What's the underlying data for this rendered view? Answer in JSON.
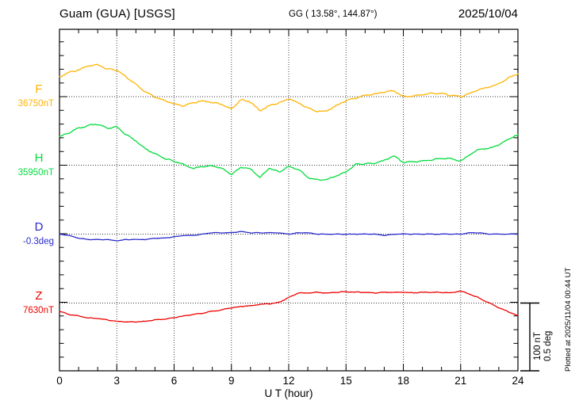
{
  "header": {
    "station": "Guam (GUA)  [USGS]",
    "coords": "GG ( 13.58°, 144.87°)",
    "date": "2025/10/04"
  },
  "plotted_at": "Plotted at 2025/11/04 00:44 UT",
  "scale_bar": {
    "labels": [
      "100 nT",
      "0.5 deg"
    ],
    "nT": 100,
    "deg": 0.5
  },
  "colors": {
    "F": "#FFB300",
    "H": "#00DC3C",
    "D": "#2929CC",
    "Z": "#EE0000",
    "axis": "#000000",
    "grid": "#444444"
  },
  "chart_data": {
    "type": "line",
    "title": "Guam (GUA) [USGS] magnetogram 2025/10/04",
    "xlabel": "U T (hour)",
    "xlim": [
      0,
      24
    ],
    "x_ticks": [
      0,
      3,
      6,
      9,
      12,
      15,
      18,
      21,
      24
    ],
    "x_start": 0,
    "x_step": 0.5,
    "grid": "dotted vertical every 3h, dotted horizontal at each component baseline",
    "y_minor_tick_nT": 20,
    "series": [
      {
        "name": "F",
        "unit": "nT",
        "baseline": 36750,
        "baseline_label": "36750nT",
        "values": [
          36779,
          36786,
          36790,
          36796,
          36797,
          36791,
          36790,
          36779,
          36768,
          36757,
          36749,
          36744,
          36739,
          36736,
          36741,
          36744,
          36741,
          36739,
          36731,
          36746,
          36742,
          36729,
          36737,
          36741,
          36747,
          36741,
          36733,
          36728,
          36729,
          36737,
          36744,
          36748,
          36752,
          36754,
          36757,
          36759,
          36750,
          36751,
          36753,
          36755,
          36755,
          36752,
          36750,
          36755,
          36761,
          36764,
          36769,
          36778,
          36784
        ]
      },
      {
        "name": "H",
        "unit": "nT",
        "baseline": 35950,
        "baseline_label": "35950nT",
        "values": [
          35992,
          35998,
          36005,
          36009,
          36011,
          36005,
          36007,
          35995,
          35986,
          35974,
          35967,
          35960,
          35956,
          35951,
          35945,
          35948,
          35949,
          35945,
          35936,
          35947,
          35944,
          35932,
          35946,
          35940,
          35948,
          35944,
          35932,
          35928,
          35929,
          35934,
          35940,
          35951,
          35952,
          35953,
          35957,
          35964,
          35954,
          35955,
          35956,
          35958,
          35960,
          35960,
          35956,
          35966,
          35974,
          35975,
          35980,
          35989,
          35995
        ]
      },
      {
        "name": "D",
        "unit": "deg",
        "baseline": -0.3,
        "baseline_label": "-0.3deg",
        "values": [
          -0.3,
          -0.31,
          -0.33,
          -0.34,
          -0.34,
          -0.34,
          -0.35,
          -0.34,
          -0.34,
          -0.34,
          -0.33,
          -0.33,
          -0.32,
          -0.31,
          -0.31,
          -0.3,
          -0.29,
          -0.29,
          -0.29,
          -0.28,
          -0.29,
          -0.29,
          -0.29,
          -0.29,
          -0.3,
          -0.29,
          -0.29,
          -0.3,
          -0.3,
          -0.3,
          -0.3,
          -0.3,
          -0.3,
          -0.3,
          -0.31,
          -0.3,
          -0.3,
          -0.3,
          -0.3,
          -0.3,
          -0.3,
          -0.3,
          -0.3,
          -0.29,
          -0.29,
          -0.3,
          -0.3,
          -0.3,
          -0.3
        ]
      },
      {
        "name": "Z",
        "unit": "nT",
        "baseline": 7630,
        "baseline_label": "7630nT",
        "values": [
          7618,
          7613,
          7611,
          7608,
          7607,
          7605,
          7603,
          7602,
          7602,
          7603,
          7605,
          7606,
          7608,
          7611,
          7613,
          7615,
          7618,
          7620,
          7623,
          7625,
          7626,
          7628,
          7629,
          7631,
          7638,
          7645,
          7645,
          7646,
          7645,
          7646,
          7647,
          7646,
          7646,
          7645,
          7646,
          7646,
          7646,
          7645,
          7646,
          7646,
          7646,
          7645,
          7648,
          7643,
          7637,
          7630,
          7623,
          7617,
          7611
        ]
      }
    ]
  }
}
